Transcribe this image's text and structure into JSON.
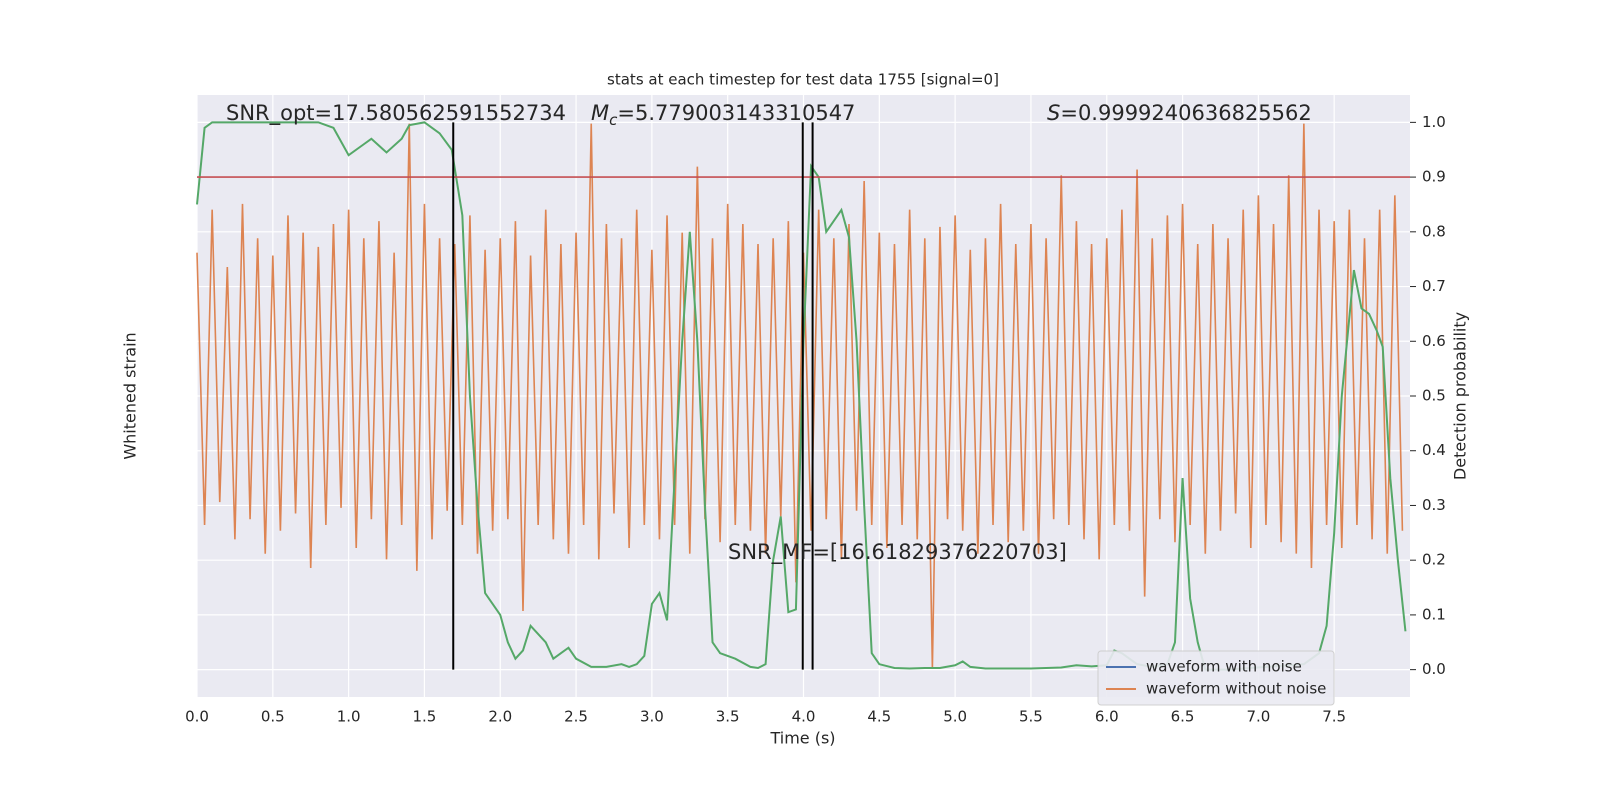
{
  "chart_data": {
    "type": "line",
    "title": "stats at each timestep for test data 1755 [signal=0]",
    "xlabel": "Time (s)",
    "ylabel": "Whitened strain",
    "y2label": "Detection probability",
    "xlim": [
      0,
      8
    ],
    "ylim": [
      -1.1,
      1.0
    ],
    "y2lim": [
      -0.05,
      1.05
    ],
    "xticks": [
      {
        "value": 0,
        "label": "0.0"
      },
      {
        "value": 0.5,
        "label": "0.5"
      },
      {
        "value": 1,
        "label": "1.0"
      },
      {
        "value": 1.5,
        "label": "1.5"
      },
      {
        "value": 2,
        "label": "2.0"
      },
      {
        "value": 2.5,
        "label": "2.5"
      },
      {
        "value": 3,
        "label": "3.0"
      },
      {
        "value": 3.5,
        "label": "3.5"
      },
      {
        "value": 4,
        "label": "4.0"
      },
      {
        "value": 4.5,
        "label": "4.5"
      },
      {
        "value": 5,
        "label": "5.0"
      },
      {
        "value": 5.5,
        "label": "5.5"
      },
      {
        "value": 6,
        "label": "6.0"
      },
      {
        "value": 6.5,
        "label": "6.5"
      },
      {
        "value": 7,
        "label": "7.0"
      },
      {
        "value": 7.5,
        "label": "7.5"
      }
    ],
    "y2ticks": [
      {
        "value": 0,
        "label": "0.0"
      },
      {
        "value": 0.1,
        "label": "0.1"
      },
      {
        "value": 0.2,
        "label": "0.2"
      },
      {
        "value": 0.3,
        "label": "0.3"
      },
      {
        "value": 0.4,
        "label": "0.4"
      },
      {
        "value": 0.5,
        "label": "0.5"
      },
      {
        "value": 0.6,
        "label": "0.6"
      },
      {
        "value": 0.7,
        "label": "0.7"
      },
      {
        "value": 0.8,
        "label": "0.8"
      },
      {
        "value": 0.9,
        "label": "0.9"
      },
      {
        "value": 1,
        "label": "1.0"
      }
    ],
    "grid": true,
    "legend": "lower right",
    "annotations": [
      {
        "text": "SNR_opt=17.580562591552734"
      },
      {
        "symbol": "M",
        "subscript": "c",
        "text": "=5.779003143310547"
      },
      {
        "symbol": "S",
        "text": "=0.9999240636825562"
      },
      {
        "text": "SNR_MF=[16.61829376220703]"
      }
    ],
    "hline": {
      "y": 0.9,
      "color": "#c44e52",
      "axis": "y2"
    },
    "vlines": {
      "x": [
        1.69,
        3.995,
        4.06
      ],
      "ymin": 0,
      "ymax": 1,
      "color": "#000000",
      "axis": "y2"
    },
    "series": [
      {
        "name": "waveform with noise",
        "color": "#4c72b0"
      },
      {
        "name": "waveform without noise",
        "color": "#dd8452",
        "x": [
          0,
          0.05,
          0.1,
          0.15,
          0.2,
          0.25,
          0.3,
          0.35,
          0.4,
          0.45,
          0.5,
          0.55,
          0.6,
          0.65,
          0.7,
          0.75,
          0.8,
          0.85,
          0.9,
          0.95,
          1,
          1.05,
          1.1,
          1.15,
          1.2,
          1.25,
          1.3,
          1.35,
          1.4,
          1.45,
          1.5,
          1.55,
          1.6,
          1.65,
          1.7,
          1.75,
          1.8,
          1.85,
          1.9,
          1.95,
          2,
          2.05,
          2.1,
          2.15,
          2.2,
          2.25,
          2.3,
          2.35,
          2.4,
          2.45,
          2.5,
          2.55,
          2.6,
          2.65,
          2.7,
          2.75,
          2.8,
          2.85,
          2.9,
          2.95,
          3,
          3.05,
          3.1,
          3.15,
          3.2,
          3.25,
          3.3,
          3.35,
          3.4,
          3.45,
          3.5,
          3.55,
          3.6,
          3.65,
          3.7,
          3.75,
          3.8,
          3.85,
          3.9,
          3.95,
          4,
          4.05,
          4.1,
          4.15,
          4.2,
          4.25,
          4.3,
          4.35,
          4.4,
          4.45,
          4.5,
          4.55,
          4.6,
          4.65,
          4.7,
          4.75,
          4.8,
          4.85,
          4.9,
          4.95,
          5,
          5.05,
          5.1,
          5.15,
          5.2,
          5.25,
          5.3,
          5.35,
          5.4,
          5.45,
          5.5,
          5.55,
          5.6,
          5.65,
          5.7,
          5.75,
          5.8,
          5.85,
          5.9,
          5.95,
          6,
          6.05,
          6.1,
          6.15,
          6.2,
          6.25,
          6.3,
          6.35,
          6.4,
          6.45,
          6.5,
          6.55,
          6.6,
          6.65,
          6.7,
          6.75,
          6.8,
          6.85,
          6.9,
          6.95,
          7,
          7.05,
          7.1,
          7.15,
          7.2,
          7.25,
          7.3,
          7.35,
          7.4,
          7.45,
          7.5,
          7.55,
          7.6,
          7.65,
          7.7,
          7.75,
          7.8,
          7.85,
          7.9,
          7.95
        ],
        "values": [
          0.45,
          -0.5,
          0.6,
          -0.42,
          0.4,
          -0.55,
          0.62,
          -0.48,
          0.5,
          -0.6,
          0.44,
          -0.52,
          0.58,
          -0.46,
          0.52,
          -0.65,
          0.47,
          -0.5,
          0.55,
          -0.44,
          0.6,
          -0.58,
          0.5,
          -0.48,
          0.56,
          -0.62,
          0.45,
          -0.5,
          0.9,
          -0.66,
          0.62,
          -0.55,
          0.5,
          -0.45,
          0.48,
          -0.5,
          0.58,
          -0.6,
          0.46,
          -0.52,
          0.5,
          -0.48,
          0.56,
          -0.8,
          0.44,
          -0.5,
          0.6,
          -0.55,
          0.48,
          -0.6,
          0.52,
          -0.5,
          0.9,
          -0.62,
          0.55,
          -0.46,
          0.5,
          -0.58,
          0.6,
          -0.5,
          0.46,
          -0.55,
          0.58,
          -0.5,
          0.52,
          -0.6,
          0.75,
          -0.48,
          0.5,
          -0.56,
          0.62,
          -0.5,
          0.55,
          -0.52,
          0.48,
          -0.6,
          0.5,
          -0.47,
          0.56,
          -0.7,
          0.45,
          -0.52,
          0.6,
          -0.48,
          0.5,
          -0.62,
          0.55,
          -0.45,
          0.7,
          -0.5,
          0.52,
          -0.58,
          0.48,
          -0.5,
          0.6,
          -0.55,
          0.5,
          -1.0,
          0.54,
          -0.48,
          0.58,
          -0.52,
          0.46,
          -0.6,
          0.5,
          -0.5,
          0.62,
          -0.56,
          0.48,
          -0.52,
          0.55,
          -0.6,
          0.5,
          -0.48,
          0.72,
          -0.5,
          0.56,
          -0.55,
          0.48,
          -0.62,
          0.5,
          -0.5,
          0.6,
          -0.52,
          0.74,
          -0.75,
          0.5,
          -0.48,
          0.58,
          -0.56,
          0.62,
          -0.5,
          0.48,
          -0.6,
          0.55,
          -0.52,
          0.5,
          -0.46,
          0.6,
          -0.58,
          0.65,
          -0.5,
          0.55,
          -0.56,
          0.72,
          -0.6,
          0.9,
          -0.65,
          0.6,
          -0.5,
          0.56,
          -0.58,
          0.6,
          -0.5,
          0.5,
          -0.55,
          0.6,
          -0.6,
          0.65,
          -0.52
        ]
      },
      {
        "color": "#55a868",
        "axis": "y2",
        "x": [
          0,
          0.05,
          0.1,
          0.3,
          0.5,
          0.8,
          0.9,
          1.0,
          1.1,
          1.15,
          1.25,
          1.35,
          1.4,
          1.5,
          1.6,
          1.68,
          1.75,
          1.8,
          1.85,
          1.9,
          2.0,
          2.05,
          2.1,
          2.15,
          2.2,
          2.3,
          2.35,
          2.4,
          2.45,
          2.5,
          2.6,
          2.7,
          2.8,
          2.85,
          2.9,
          2.95,
          3.0,
          3.05,
          3.1,
          3.15,
          3.2,
          3.25,
          3.3,
          3.35,
          3.4,
          3.45,
          3.55,
          3.65,
          3.7,
          3.75,
          3.8,
          3.85,
          3.9,
          3.95,
          4.0,
          4.05,
          4.1,
          4.15,
          4.25,
          4.3,
          4.35,
          4.4,
          4.45,
          4.5,
          4.6,
          4.7,
          4.8,
          4.9,
          5.0,
          5.05,
          5.1,
          5.2,
          5.5,
          5.7,
          5.8,
          5.9,
          6.0,
          6.05,
          6.1,
          6.2,
          6.3,
          6.4,
          6.45,
          6.5,
          6.55,
          6.6,
          6.65,
          6.7,
          6.8,
          7.3,
          7.4,
          7.45,
          7.5,
          7.55,
          7.63,
          7.68,
          7.73,
          7.78,
          7.82,
          7.87,
          7.92,
          7.97
        ],
        "values": [
          0.85,
          0.99,
          1.0,
          1.0,
          1.0,
          1.0,
          0.99,
          0.94,
          0.96,
          0.97,
          0.945,
          0.97,
          0.995,
          1.0,
          0.98,
          0.95,
          0.83,
          0.5,
          0.3,
          0.14,
          0.1,
          0.05,
          0.02,
          0.035,
          0.08,
          0.05,
          0.02,
          0.03,
          0.04,
          0.02,
          0.005,
          0.005,
          0.01,
          0.005,
          0.01,
          0.025,
          0.12,
          0.14,
          0.09,
          0.35,
          0.6,
          0.8,
          0.6,
          0.3,
          0.05,
          0.03,
          0.02,
          0.005,
          0.003,
          0.01,
          0.2,
          0.28,
          0.105,
          0.11,
          0.6,
          0.92,
          0.9,
          0.8,
          0.84,
          0.79,
          0.6,
          0.3,
          0.03,
          0.01,
          0.003,
          0.002,
          0.003,
          0.003,
          0.008,
          0.015,
          0.005,
          0.002,
          0.002,
          0.004,
          0.008,
          0.006,
          0.008,
          0.035,
          0.03,
          0.01,
          0.005,
          0.01,
          0.05,
          0.35,
          0.13,
          0.05,
          0.0,
          0.0,
          0.0,
          0.01,
          0.03,
          0.08,
          0.25,
          0.5,
          0.73,
          0.66,
          0.65,
          0.62,
          0.59,
          0.35,
          0.2,
          0.07
        ]
      }
    ]
  }
}
